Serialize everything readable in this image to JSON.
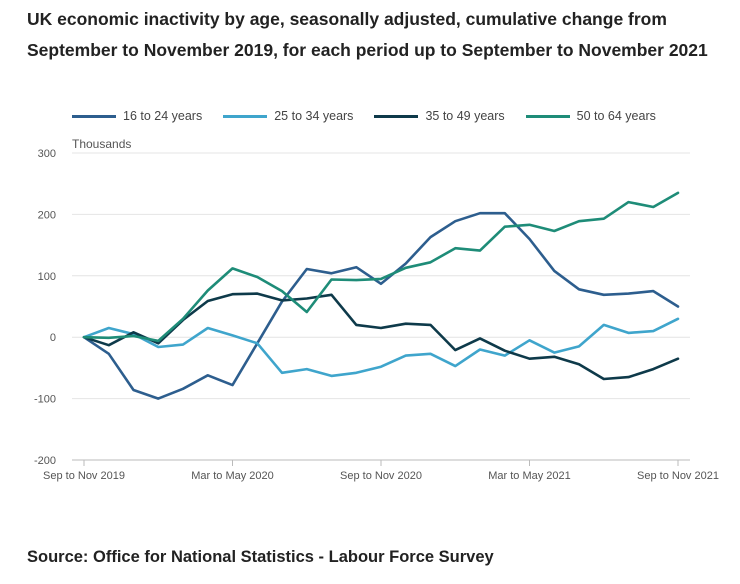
{
  "title": "UK economic inactivity by age, seasonally adjusted, cumulative change from September to November 2019, for each period up to September to November 2021",
  "source": "Source: Office for National Statistics - Labour Force Survey",
  "chart_data": {
    "type": "line",
    "title": "UK economic inactivity by age, seasonally adjusted, cumulative change from September to November 2019, for each period up to September to November 2021",
    "ylabel": "Thousands",
    "xlabel": "",
    "ylim": [
      -200,
      300
    ],
    "yticks": [
      300,
      200,
      100,
      0,
      -100,
      -200
    ],
    "grid": true,
    "legend_position": "top",
    "x": [
      "Sep to Nov 2019",
      "Oct to Dec 2019",
      "Nov to Jan 2020",
      "Dec to Feb 2020",
      "Jan to Mar 2020",
      "Feb to Apr 2020",
      "Mar to May 2020",
      "Apr to Jun 2020",
      "May to Jul 2020",
      "Jun to Aug 2020",
      "Jul to Sep 2020",
      "Aug to Oct 2020",
      "Sep to Nov 2020",
      "Oct to Dec 2020",
      "Nov to Jan 2021",
      "Dec to Feb 2021",
      "Jan to Mar 2021",
      "Feb to Apr 2021",
      "Mar to May 2021",
      "Apr to Jun 2021",
      "May to Jul 2021",
      "Jun to Aug 2021",
      "Jul to Sep 2021",
      "Aug to Oct 2021",
      "Sep to Nov 2021"
    ],
    "x_tick_labels": [
      "Sep to Nov 2019",
      "Mar to May 2020",
      "Sep to Nov 2020",
      "Mar to May 2021",
      "Sep to Nov 2021"
    ],
    "x_tick_indices": [
      0,
      6,
      12,
      18,
      24
    ],
    "series": [
      {
        "name": "16 to 24 years",
        "color": "#2d5e8e",
        "values": [
          0,
          -27,
          -86,
          -100,
          -84,
          -62,
          -78,
          -10,
          58,
          111,
          104,
          114,
          87,
          120,
          163,
          189,
          202,
          202,
          160,
          108,
          78,
          69,
          71,
          75,
          50
        ]
      },
      {
        "name": "25 to 34 years",
        "color": "#3fa5cc",
        "values": [
          0,
          15,
          5,
          -16,
          -12,
          15,
          3,
          -10,
          -58,
          -52,
          -63,
          -58,
          -48,
          -30,
          -27,
          -47,
          -20,
          -30,
          -5,
          -25,
          -15,
          20,
          7,
          10,
          30
        ]
      },
      {
        "name": "35 to 49 years",
        "color": "#0e3a4a",
        "values": [
          0,
          -13,
          8,
          -10,
          28,
          59,
          70,
          71,
          60,
          63,
          69,
          20,
          15,
          22,
          20,
          -21,
          -2,
          -22,
          -35,
          -32,
          -44,
          -68,
          -65,
          -52,
          -35
        ]
      },
      {
        "name": "50 to 64 years",
        "color": "#1e8c78",
        "values": [
          0,
          -1,
          2,
          -6,
          30,
          76,
          112,
          98,
          75,
          41,
          94,
          93,
          95,
          113,
          122,
          145,
          141,
          180,
          183,
          173,
          189,
          193,
          220,
          212,
          235
        ]
      }
    ]
  }
}
